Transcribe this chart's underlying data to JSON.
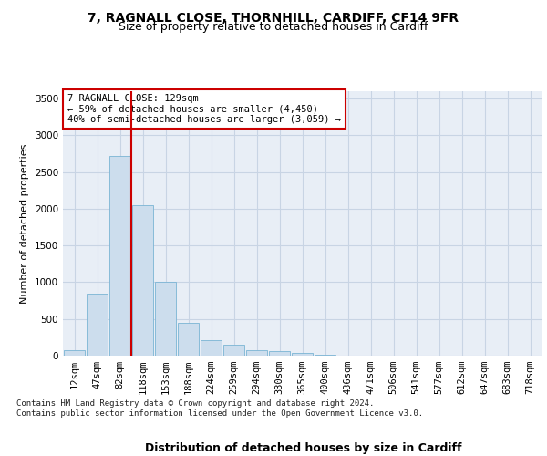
{
  "title1": "7, RAGNALL CLOSE, THORNHILL, CARDIFF, CF14 9FR",
  "title2": "Size of property relative to detached houses in Cardiff",
  "xlabel": "Distribution of detached houses by size in Cardiff",
  "ylabel": "Number of detached properties",
  "footnote": "Contains HM Land Registry data © Crown copyright and database right 2024.\nContains public sector information licensed under the Open Government Licence v3.0.",
  "categories": [
    "12sqm",
    "47sqm",
    "82sqm",
    "118sqm",
    "153sqm",
    "188sqm",
    "224sqm",
    "259sqm",
    "294sqm",
    "330sqm",
    "365sqm",
    "400sqm",
    "436sqm",
    "471sqm",
    "506sqm",
    "541sqm",
    "577sqm",
    "612sqm",
    "647sqm",
    "683sqm",
    "718sqm"
  ],
  "values": [
    75,
    840,
    2720,
    2050,
    1000,
    450,
    210,
    145,
    75,
    60,
    35,
    10,
    5,
    0,
    0,
    0,
    0,
    0,
    0,
    0,
    0
  ],
  "bar_color": "#ccdded",
  "bar_edge_color": "#7ab4d4",
  "grid_color": "#c8d4e4",
  "background_color": "#e8eef6",
  "vline_x_index": 2.5,
  "vline_color": "#cc0000",
  "annotation_text": "7 RAGNALL CLOSE: 129sqm\n← 59% of detached houses are smaller (4,450)\n40% of semi-detached houses are larger (3,059) →",
  "annotation_box_edge": "#cc0000",
  "ylim": [
    0,
    3600
  ],
  "yticks": [
    0,
    500,
    1000,
    1500,
    2000,
    2500,
    3000,
    3500
  ],
  "title1_fontsize": 10,
  "title2_fontsize": 9,
  "xlabel_fontsize": 9,
  "ylabel_fontsize": 8,
  "tick_fontsize": 7.5,
  "annotation_fontsize": 7.5,
  "footnote_fontsize": 6.5
}
